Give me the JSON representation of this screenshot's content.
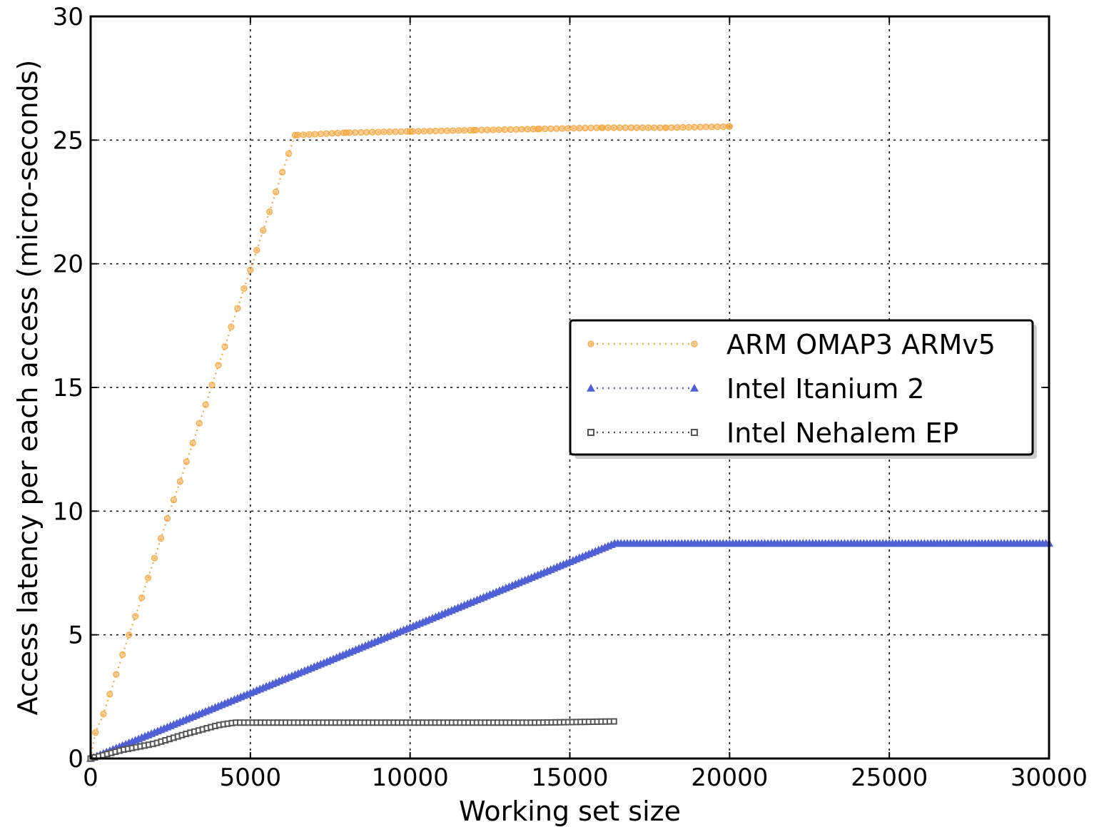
{
  "chart_data": {
    "type": "line",
    "title": "",
    "xlabel": "Working set size",
    "ylabel": "Access latency per each access (micro-seconds)",
    "xlim": [
      0,
      30000
    ],
    "ylim": [
      0,
      30
    ],
    "xticks": [
      0,
      5000,
      10000,
      15000,
      20000,
      25000,
      30000
    ],
    "yticks": [
      0,
      5,
      10,
      15,
      20,
      25,
      30
    ],
    "grid": true,
    "legend_position": "center-right",
    "series": [
      {
        "name": "ARM OMAP3 ARMv5",
        "color": "#f5a742",
        "marker": "circle",
        "linestyle": "dotted",
        "points": [
          [
            0,
            0.0
          ],
          [
            150,
            1.05
          ],
          [
            400,
            1.8
          ],
          [
            600,
            2.6
          ],
          [
            800,
            3.4
          ],
          [
            1000,
            4.2
          ],
          [
            1200,
            5.0
          ],
          [
            1400,
            5.75
          ],
          [
            1600,
            6.5
          ],
          [
            1800,
            7.3
          ],
          [
            2000,
            8.1
          ],
          [
            2200,
            8.9
          ],
          [
            2400,
            9.7
          ],
          [
            2600,
            10.45
          ],
          [
            2800,
            11.2
          ],
          [
            3000,
            12.0
          ],
          [
            3200,
            12.75
          ],
          [
            3400,
            13.55
          ],
          [
            3600,
            14.3
          ],
          [
            3800,
            15.1
          ],
          [
            4000,
            15.9
          ],
          [
            4200,
            16.65
          ],
          [
            4400,
            17.45
          ],
          [
            4600,
            18.2
          ],
          [
            4800,
            19.0
          ],
          [
            5000,
            19.75
          ],
          [
            5200,
            20.55
          ],
          [
            5400,
            21.35
          ],
          [
            5600,
            22.1
          ],
          [
            5800,
            22.9
          ],
          [
            6000,
            23.7
          ],
          [
            6200,
            24.45
          ],
          [
            6400,
            25.2
          ],
          [
            8000,
            25.3
          ],
          [
            10000,
            25.35
          ],
          [
            12000,
            25.4
          ],
          [
            14000,
            25.45
          ],
          [
            16000,
            25.5
          ],
          [
            18000,
            25.5
          ],
          [
            20000,
            25.55
          ]
        ]
      },
      {
        "name": "Intel Itanium 2",
        "color": "#4f5fd6",
        "marker": "triangle",
        "linestyle": "dotted",
        "points": [
          [
            0,
            0.0
          ],
          [
            16400,
            8.7
          ],
          [
            30000,
            8.7
          ]
        ]
      },
      {
        "name": "Intel Nehalem EP",
        "color": "#555555",
        "marker": "square",
        "linestyle": "dotted",
        "points": [
          [
            0,
            0.0
          ],
          [
            1000,
            0.35
          ],
          [
            2000,
            0.6
          ],
          [
            3000,
            1.0
          ],
          [
            4000,
            1.35
          ],
          [
            4500,
            1.45
          ],
          [
            6000,
            1.45
          ],
          [
            8000,
            1.45
          ],
          [
            10000,
            1.45
          ],
          [
            12000,
            1.45
          ],
          [
            14000,
            1.45
          ],
          [
            16400,
            1.5
          ]
        ]
      }
    ]
  }
}
